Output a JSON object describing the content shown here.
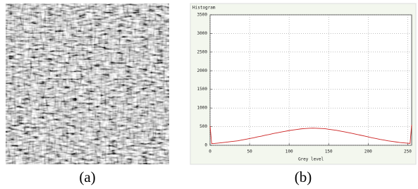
{
  "captions": [
    "(a)",
    "(b)"
  ],
  "chart_data": {
    "type": "line",
    "title": "Histogram",
    "xlabel": "Grey level",
    "color": "#cc2222",
    "grid": true,
    "x": [
      0,
      2,
      5,
      10,
      15,
      20,
      25,
      30,
      35,
      40,
      45,
      50,
      55,
      60,
      65,
      70,
      75,
      80,
      85,
      90,
      95,
      100,
      105,
      110,
      115,
      120,
      125,
      130,
      135,
      140,
      145,
      150,
      155,
      160,
      165,
      170,
      175,
      180,
      185,
      190,
      195,
      200,
      205,
      210,
      215,
      220,
      225,
      230,
      235,
      240,
      245,
      250,
      253,
      255
    ],
    "values": [
      520,
      45,
      48,
      58,
      70,
      82,
      95,
      108,
      120,
      140,
      160,
      180,
      200,
      225,
      245,
      270,
      290,
      315,
      335,
      355,
      375,
      395,
      410,
      425,
      440,
      448,
      455,
      460,
      455,
      450,
      445,
      430,
      415,
      400,
      380,
      360,
      340,
      318,
      295,
      272,
      250,
      225,
      200,
      180,
      158,
      140,
      120,
      105,
      90,
      75,
      65,
      55,
      50,
      550
    ],
    "xlim": [
      0,
      255
    ],
    "ylim": [
      0,
      3500
    ],
    "xticks": [
      0,
      50,
      100,
      150,
      200,
      250
    ],
    "yticks": [
      0,
      500,
      1000,
      1500,
      2000,
      2500,
      3000,
      3500
    ]
  }
}
